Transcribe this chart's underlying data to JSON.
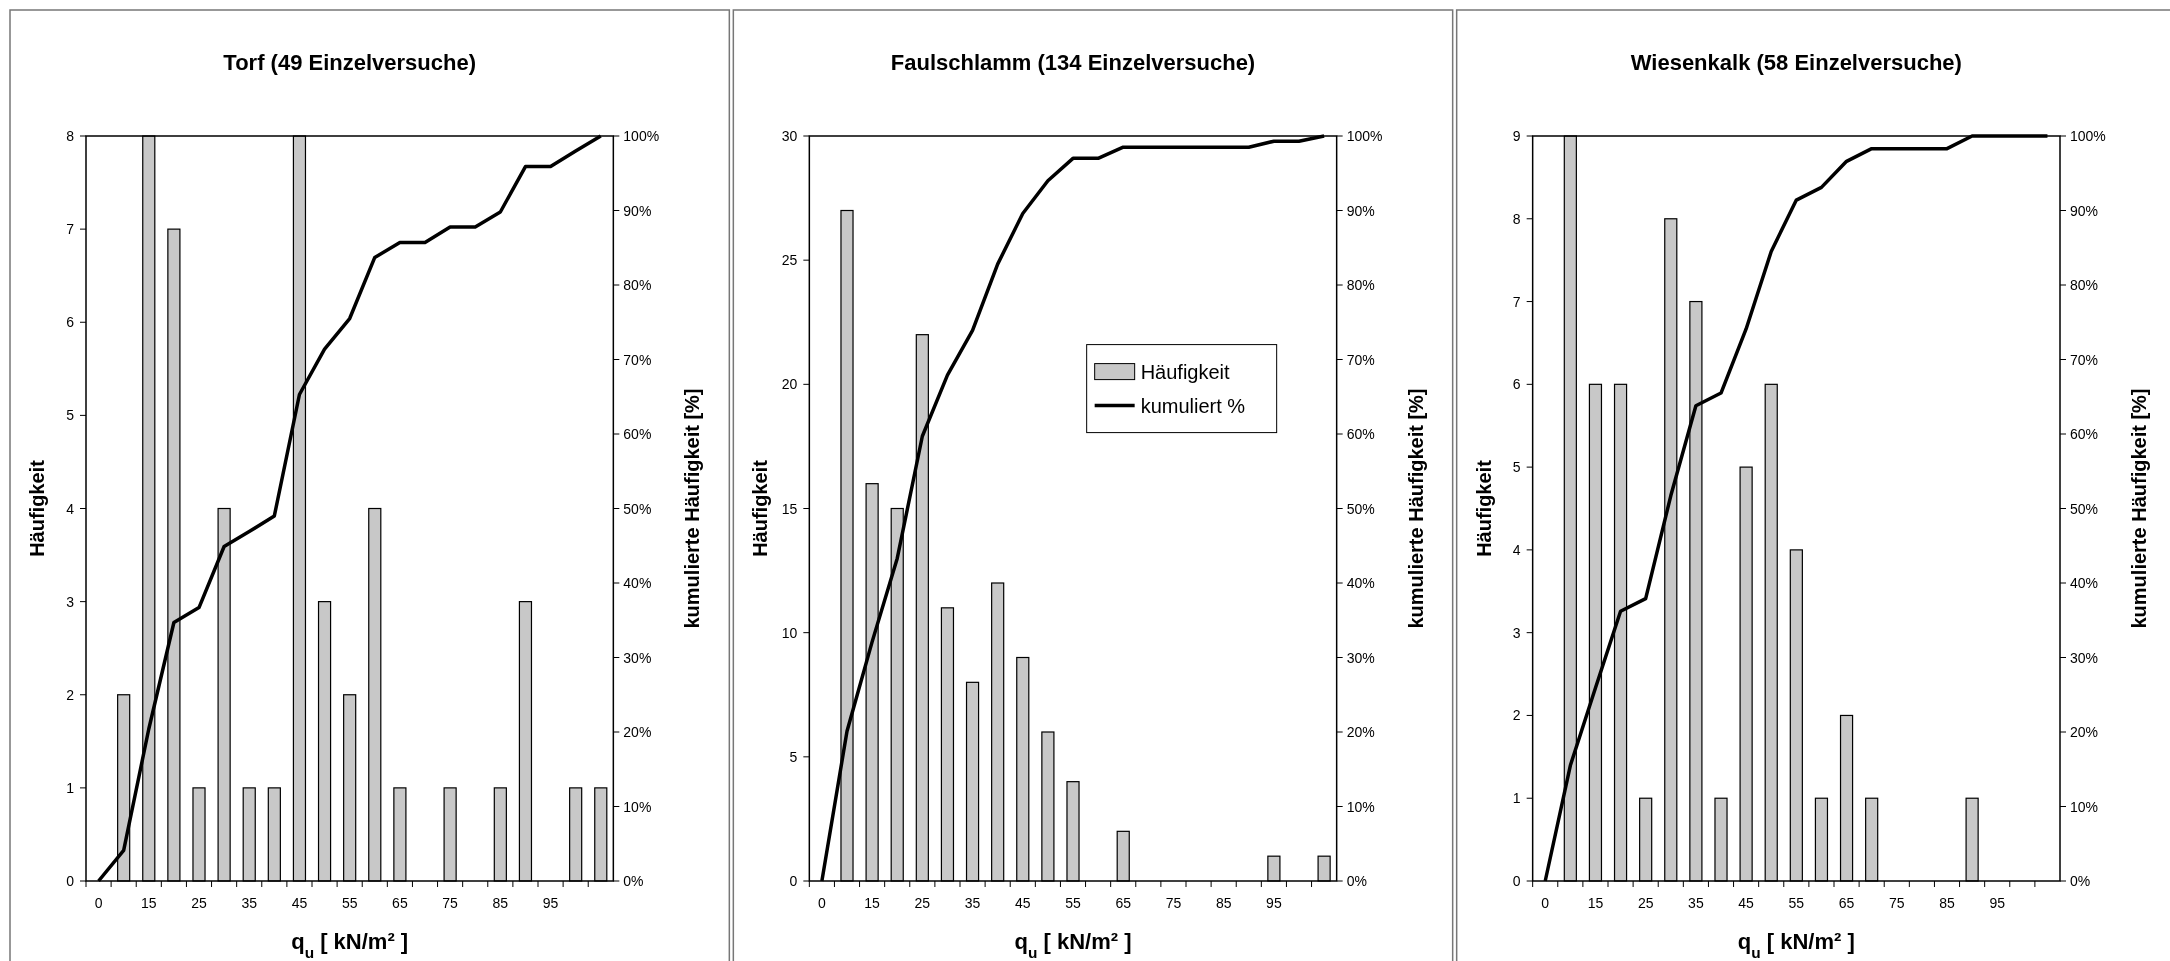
{
  "chart_data": [
    {
      "type": "bar",
      "title": "Torf (49 Einzelversuche)",
      "xlabel": "q$_{u}$ [ kN/m² ]",
      "ylabel": "Häufigkeit",
      "y2label": "kumulierte Häufigkeit [%]",
      "categories": [
        "0",
        null,
        "15",
        null,
        "25",
        null,
        "35",
        null,
        "45",
        null,
        "55",
        null,
        "65",
        null,
        "75",
        null,
        "85",
        null,
        "95",
        null,
        null
      ],
      "ylim": [
        0,
        8
      ],
      "yticks": [
        0,
        1,
        2,
        3,
        4,
        5,
        6,
        7,
        8
      ],
      "y2lim": [
        0,
        100
      ],
      "y2ticks": [
        {
          "value": 0,
          "label": "0%"
        },
        {
          "value": 10,
          "label": "10%"
        },
        {
          "value": 20,
          "label": "20%"
        },
        {
          "value": 30,
          "label": "30%"
        },
        {
          "value": 40,
          "label": "40%"
        },
        {
          "value": 50,
          "label": "50%"
        },
        {
          "value": 60,
          "label": "60%"
        },
        {
          "value": 70,
          "label": "70%"
        },
        {
          "value": 80,
          "label": "80%"
        },
        {
          "value": 90,
          "label": "90%"
        },
        {
          "value": 100,
          "label": "100%"
        }
      ],
      "legend": false,
      "series": [
        {
          "color": "#c8c8c8",
          "values": [
            0,
            2,
            8,
            7,
            1,
            4,
            1,
            1,
            8,
            3,
            2,
            4,
            1,
            0,
            1,
            0,
            1,
            3,
            0,
            1,
            1
          ]
        },
        {
          "type": "line",
          "axis": "y2",
          "color": "#000000",
          "values": [
            0,
            4.1,
            20.4,
            34.7,
            36.7,
            44.9,
            46.9,
            49.0,
            65.3,
            71.4,
            75.5,
            83.7,
            85.7,
            85.7,
            87.8,
            87.8,
            89.8,
            95.9,
            95.9,
            98.0,
            100
          ]
        }
      ]
    },
    {
      "type": "bar",
      "title": "Faulschlamm (134 Einzelversuche)",
      "xlabel": "q$_{u}$ [ kN/m² ]",
      "ylabel": "Häufigkeit",
      "y2label": "kumulierte Häufigkeit [%]",
      "categories": [
        "0",
        null,
        "15",
        null,
        "25",
        null,
        "35",
        null,
        "45",
        null,
        "55",
        null,
        "65",
        null,
        "75",
        null,
        "85",
        null,
        "95",
        null,
        null
      ],
      "ylim": [
        0,
        30
      ],
      "yticks": [
        0,
        5,
        10,
        15,
        20,
        25,
        30
      ],
      "y2lim": [
        0,
        100
      ],
      "y2ticks": [
        {
          "value": 0,
          "label": "0%"
        },
        {
          "value": 10,
          "label": "10%"
        },
        {
          "value": 20,
          "label": "20%"
        },
        {
          "value": 30,
          "label": "30%"
        },
        {
          "value": 40,
          "label": "40%"
        },
        {
          "value": 50,
          "label": "50%"
        },
        {
          "value": 60,
          "label": "60%"
        },
        {
          "value": 70,
          "label": "70%"
        },
        {
          "value": 80,
          "label": "80%"
        },
        {
          "value": 90,
          "label": "90%"
        },
        {
          "value": 100,
          "label": "100%"
        }
      ],
      "legend": "right",
      "series": [
        {
          "name": "Häufigkeit",
          "color": "#c8c8c8",
          "values": [
            0,
            27,
            16,
            15,
            22,
            11,
            8,
            12,
            9,
            6,
            4,
            0,
            2,
            0,
            0,
            0,
            0,
            0,
            1,
            0,
            1
          ]
        },
        {
          "type": "line",
          "axis": "y2",
          "name": "kumuliert %",
          "color": "#000000",
          "values": [
            0,
            20.1,
            32.1,
            43.3,
            59.7,
            67.9,
            73.9,
            82.8,
            89.6,
            94.0,
            97.0,
            97.0,
            98.5,
            98.5,
            98.5,
            98.5,
            98.5,
            98.5,
            99.3,
            99.3,
            100
          ]
        }
      ]
    },
    {
      "type": "bar",
      "title": "Wiesenkalk (58 Einzelversuche)",
      "xlabel": "q$_{u}$ [ kN/m² ]",
      "ylabel": "Häufigkeit",
      "y2label": "kumulierte Häufigkeit [%]",
      "categories": [
        "0",
        null,
        "15",
        null,
        "25",
        null,
        "35",
        null,
        "45",
        null,
        "55",
        null,
        "65",
        null,
        "75",
        null,
        "85",
        null,
        "95",
        null,
        null
      ],
      "ylim": [
        0,
        9
      ],
      "yticks": [
        0,
        1,
        2,
        3,
        4,
        5,
        6,
        7,
        8,
        9
      ],
      "y2lim": [
        0,
        100
      ],
      "y2ticks": [
        {
          "value": 0,
          "label": "0%"
        },
        {
          "value": 10,
          "label": "10%"
        },
        {
          "value": 20,
          "label": "20%"
        },
        {
          "value": 30,
          "label": "30%"
        },
        {
          "value": 40,
          "label": "40%"
        },
        {
          "value": 50,
          "label": "50%"
        },
        {
          "value": 60,
          "label": "60%"
        },
        {
          "value": 70,
          "label": "70%"
        },
        {
          "value": 80,
          "label": "80%"
        },
        {
          "value": 90,
          "label": "90%"
        },
        {
          "value": 100,
          "label": "100%"
        }
      ],
      "legend": false,
      "series": [
        {
          "color": "#c8c8c8",
          "values": [
            0,
            9,
            6,
            6,
            1,
            8,
            7,
            1,
            5,
            6,
            4,
            1,
            2,
            1,
            0,
            0,
            0,
            1,
            0,
            0,
            0
          ]
        },
        {
          "type": "line",
          "axis": "y2",
          "color": "#000000",
          "values": [
            0,
            15.5,
            25.9,
            36.2,
            37.9,
            51.7,
            63.8,
            65.5,
            74.1,
            84.5,
            91.4,
            93.1,
            96.6,
            98.3,
            98.3,
            98.3,
            98.3,
            100,
            100,
            100,
            100
          ]
        }
      ]
    }
  ]
}
